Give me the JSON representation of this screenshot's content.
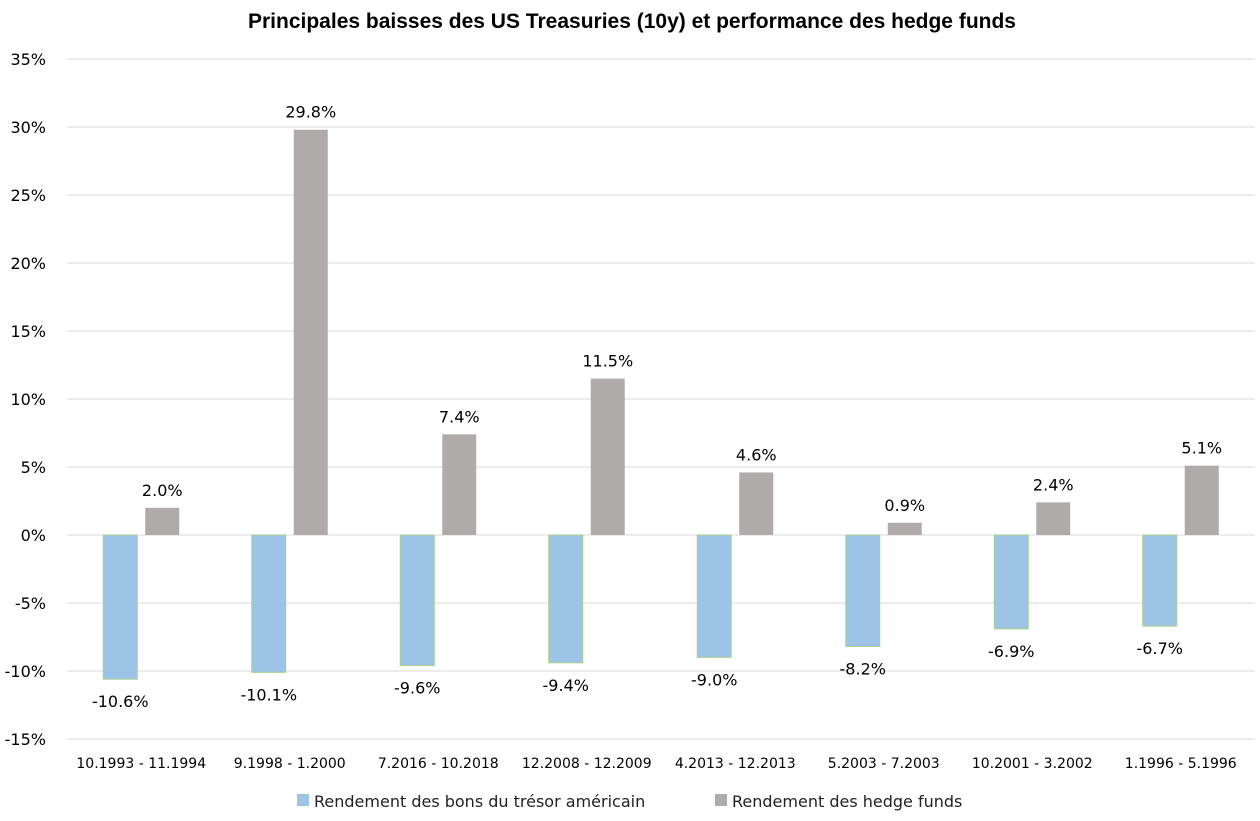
{
  "chart_data": {
    "type": "bar",
    "title": "Principales baisses des US Treasuries (10y) et performance des hedge funds",
    "categories": [
      "10.1993 - 11.1994",
      "9.1998 - 1.2000",
      "7.2016 - 10.2018",
      "12.2008 - 12.2009",
      "4.2013 - 12.2013",
      "5.2003 - 7.2003",
      "10.2001 - 3.2002",
      "1.1996 - 5.1996"
    ],
    "series": [
      {
        "name": "Rendement des bons du trésor américain",
        "color": "#9dc3e6",
        "values": [
          -10.6,
          -10.1,
          -9.6,
          -9.4,
          -9.0,
          -8.2,
          -6.9,
          -6.7
        ],
        "labels": [
          "-10.6%",
          "-10.1%",
          "-9.6%",
          "-9.4%",
          "-9.0%",
          "-8.2%",
          "-6.9%",
          "-6.7%"
        ]
      },
      {
        "name": "Rendement des hedge funds",
        "color": "#afabab",
        "values": [
          2.0,
          29.8,
          7.4,
          11.5,
          4.6,
          0.9,
          2.4,
          5.1
        ],
        "labels": [
          "2.0%",
          "29.8%",
          "7.4%",
          "11.5%",
          "4.6%",
          "0.9%",
          "2.4%",
          "5.1%"
        ]
      }
    ],
    "yticks": [
      35,
      30,
      25,
      20,
      15,
      10,
      5,
      0,
      -5,
      -10,
      -15
    ],
    "ytick_labels": [
      "35%",
      "30%",
      "25%",
      "20%",
      "15%",
      "10%",
      "5%",
      "0%",
      "-5%",
      "-10%",
      "-15%"
    ],
    "ylim": [
      -15,
      35
    ],
    "grid": true,
    "legend_position": "bottom",
    "xlabel": "",
    "ylabel": ""
  }
}
